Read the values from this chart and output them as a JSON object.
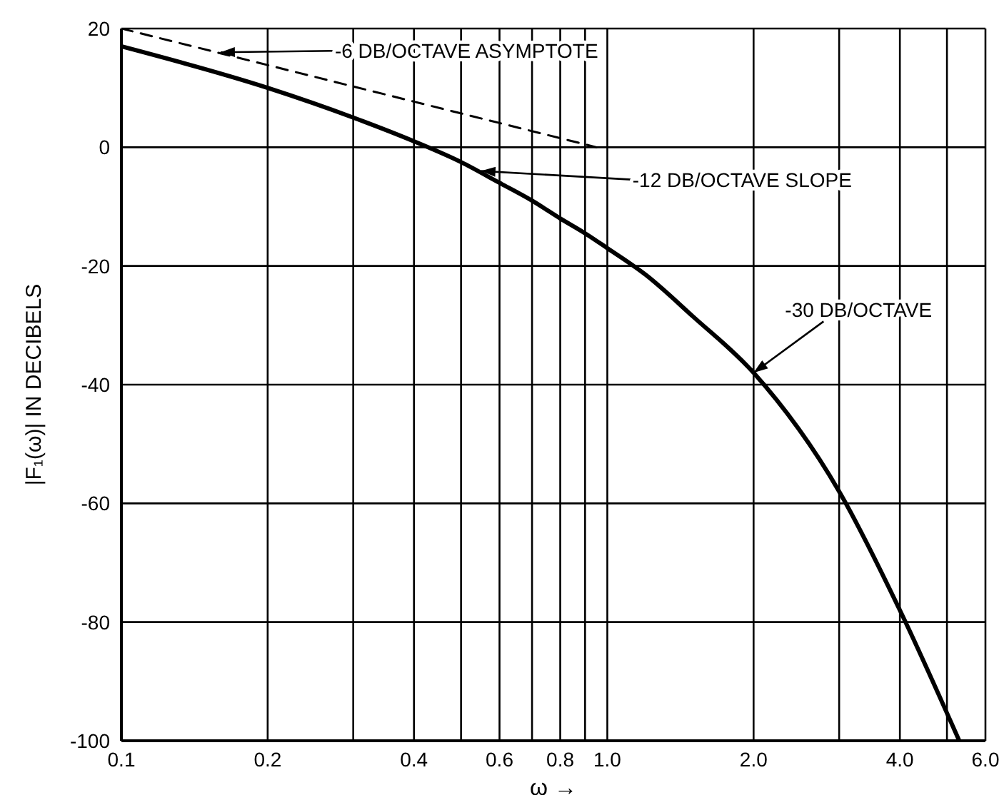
{
  "chart_data": {
    "type": "line",
    "xlabel": "ω →",
    "ylabel": "|F₁(ω)| IN DECIBELS",
    "log": "x",
    "xlim": [
      0.1,
      6
    ],
    "ylim": [
      -100,
      20
    ],
    "xticks": [
      0.1,
      0.2,
      {
        "value": 0.3,
        "label": null
      },
      0.4,
      {
        "value": 0.5,
        "label": null
      },
      0.6,
      {
        "value": 0.7,
        "label": null
      },
      0.8,
      {
        "value": 0.9,
        "label": null
      },
      {
        "value": 1,
        "label": "1.0"
      },
      {
        "value": 2,
        "label": "2.0"
      },
      {
        "value": 3,
        "label": null
      },
      {
        "value": 4,
        "label": "4.0"
      },
      {
        "value": 5,
        "label": null
      },
      {
        "value": 6,
        "label": "6.0"
      }
    ],
    "yticks": [
      -100,
      -80,
      -60,
      -40,
      -20,
      0,
      20
    ],
    "grid": true,
    "marker": "none",
    "series": [
      {
        "color": "#000000",
        "line_style": "solid",
        "x": [
          0.1,
          0.2,
          0.3,
          0.4,
          0.5,
          0.6,
          0.7,
          0.8,
          0.9,
          1.0,
          1.2,
          1.5,
          2.0,
          3.0,
          4.0,
          5.3
        ],
        "values": [
          17,
          10,
          5,
          1,
          -2.5,
          -6,
          -9,
          -12,
          -14.5,
          -17,
          -21.5,
          -28.5,
          -38,
          -58,
          -78,
          -100
        ]
      },
      {
        "color": "#000000",
        "line_style": "dashed",
        "x": [
          0.1,
          0.95
        ],
        "values": [
          20,
          0
        ]
      }
    ],
    "annotations": [
      {
        "text": "-6 DB/OCTAVE ASYMPTOTE",
        "x": 0.16,
        "y": 16
      },
      {
        "text": "-12 DB/OCTAVE SLOPE",
        "x": 0.55,
        "y": -4
      },
      {
        "text": "-30 DB/OCTAVE",
        "x": 2.0,
        "y": -38
      }
    ]
  }
}
